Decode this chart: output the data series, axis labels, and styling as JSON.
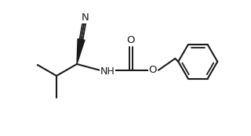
{
  "background": "#ffffff",
  "line_color": "#1a1a1a",
  "lw": 1.5,
  "figsize": [
    3.2,
    1.74
  ],
  "dpi": 100,
  "labels": {
    "N": "N",
    "O_carbonyl": "O",
    "O_ester": "O",
    "NH": "NH"
  }
}
